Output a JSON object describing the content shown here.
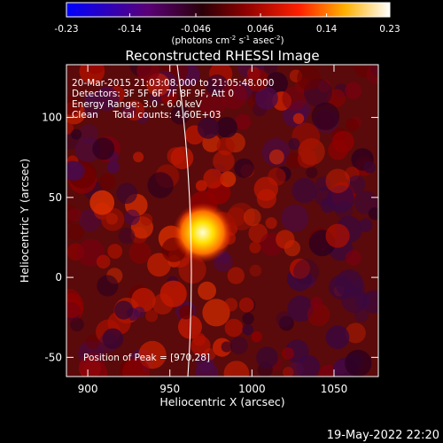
{
  "chart_data": {
    "type": "heatmap",
    "title": "Reconstructed RHESSI Image",
    "xlabel": "Heliocentric X (arcsec)",
    "ylabel": "Heliocentric Y (arcsec)",
    "xlim": [
      887,
      1077
    ],
    "ylim": [
      -62,
      133
    ],
    "x_ticks": [
      "900",
      "950",
      "1000",
      "1050"
    ],
    "x_tick_values": [
      900,
      950,
      1000,
      1050
    ],
    "y_ticks": [
      "-50",
      "0",
      "50",
      "100"
    ],
    "y_tick_values": [
      -50,
      0,
      50,
      100
    ],
    "colorbar": {
      "ticks": [
        "-0.23",
        "-0.14",
        "-0.046",
        "0.046",
        "0.14",
        "0.23"
      ],
      "tick_values": [
        -0.23,
        -0.14,
        -0.046,
        0.046,
        0.14,
        0.23
      ],
      "range": [
        -0.23,
        0.23
      ],
      "unit_parts": [
        "(photons cm",
        "-2",
        " s",
        "-1",
        " asec",
        "-2",
        ")"
      ]
    },
    "annotations": [
      "20-Mar-2015 21:03:08.000 to 21:05:48.000",
      "Detectors: 3F 5F 6F 7F 8F 9F, Att 0",
      "Energy Range: 3.0 - 6.0 keV",
      "Clean     Total counts: 4.60E+03"
    ],
    "peak_label": "Position of Peak = [970,28]",
    "peak": [
      970,
      28
    ],
    "peak_value": 0.23,
    "grid": false
  },
  "footer": {
    "date": "19-May-2022 22:20"
  }
}
